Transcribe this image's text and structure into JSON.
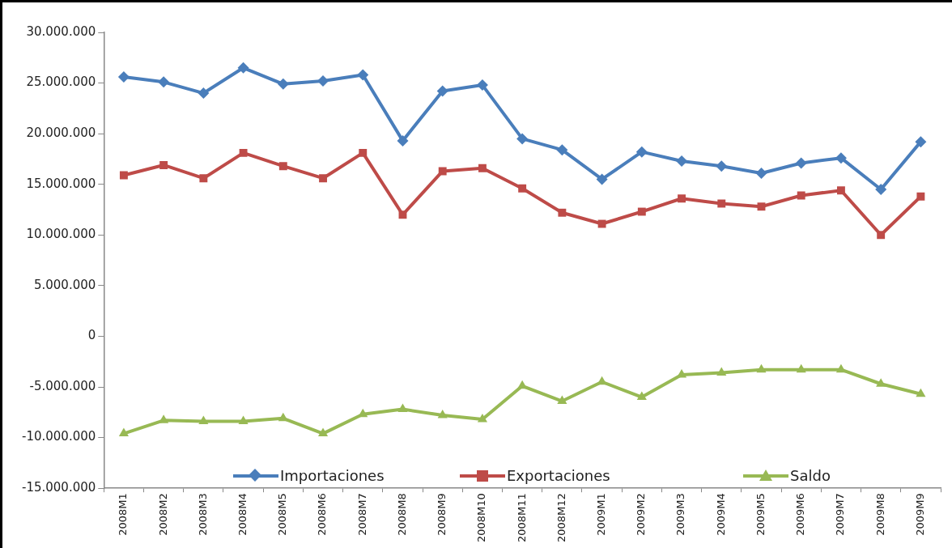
{
  "chart_data": {
    "type": "line",
    "categories": [
      "2008M1",
      "2008M2",
      "2008M3",
      "2008M4",
      "2008M5",
      "2008M6",
      "2008M7",
      "2008M8",
      "2008M9",
      "2008M10",
      "2008M11",
      "2008M12",
      "2009M1",
      "2009M2",
      "2009M3",
      "2009M4",
      "2009M5",
      "2009M6",
      "2009M7",
      "2009M8",
      "2009M9"
    ],
    "series": [
      {
        "name": "Importaciones",
        "color": "#4a7ebb",
        "marker": "diamond",
        "values": [
          25600000,
          25100000,
          24000000,
          26500000,
          24900000,
          25200000,
          25800000,
          19300000,
          24200000,
          24800000,
          19500000,
          18400000,
          15500000,
          18200000,
          17300000,
          16800000,
          16100000,
          17100000,
          17600000,
          14500000,
          19200000
        ]
      },
      {
        "name": "Exportaciones",
        "color": "#be4b48",
        "marker": "square",
        "values": [
          15900000,
          16900000,
          15600000,
          18100000,
          16800000,
          15600000,
          18100000,
          12000000,
          16300000,
          16600000,
          14600000,
          12200000,
          11100000,
          12300000,
          13600000,
          13100000,
          12800000,
          13900000,
          14400000,
          10000000,
          13800000
        ]
      },
      {
        "name": "Saldo",
        "color": "#98b954",
        "marker": "triangle",
        "values": [
          -9600000,
          -8300000,
          -8400000,
          -8400000,
          -8100000,
          -9600000,
          -7700000,
          -7200000,
          -7800000,
          -8200000,
          -4900000,
          -6400000,
          -4500000,
          -6000000,
          -3800000,
          -3600000,
          -3300000,
          -3300000,
          -3300000,
          -4700000,
          -5700000
        ]
      }
    ],
    "ylim": [
      -15000000,
      30000000
    ],
    "yticks": [
      {
        "value": -15000000,
        "label": "-15.000.000"
      },
      {
        "value": -10000000,
        "label": "-10.000.000"
      },
      {
        "value": -5000000,
        "label": "-5.000.000"
      },
      0,
      {
        "value": 5000000,
        "label": "5.000.000"
      },
      {
        "value": 10000000,
        "label": "10.000.000"
      },
      {
        "value": 15000000,
        "label": "15.000.000"
      },
      {
        "value": 20000000,
        "label": "20.000.000"
      },
      {
        "value": 25000000,
        "label": "25.000.000"
      },
      {
        "value": 30000000,
        "label": "30.000.000"
      }
    ],
    "grid": false,
    "legend": "bottom"
  }
}
